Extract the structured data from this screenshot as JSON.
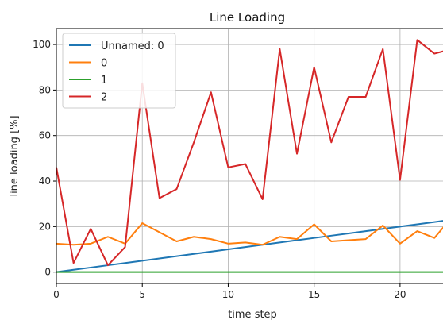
{
  "chart_data": {
    "type": "line",
    "title": "Line Loading",
    "xlabel": "time step",
    "ylabel": "line loading [%]",
    "xlim": [
      0,
      22.5
    ],
    "ylim": [
      -5,
      107
    ],
    "xticks": [
      0,
      5,
      10,
      15,
      20
    ],
    "yticks": [
      0,
      20,
      40,
      60,
      80,
      100
    ],
    "grid": true,
    "legend_position": "top-left",
    "x": [
      0,
      1,
      2,
      3,
      4,
      5,
      6,
      7,
      8,
      9,
      10,
      11,
      12,
      13,
      14,
      15,
      16,
      17,
      18,
      19,
      20,
      21,
      22,
      23
    ],
    "series": [
      {
        "name": "Unnamed: 0",
        "color": "#1f77b4",
        "values": [
          0,
          1,
          2,
          3,
          4,
          5,
          6,
          7,
          8,
          9,
          10,
          11,
          12,
          13,
          14,
          15,
          16,
          17,
          18,
          19,
          20,
          21,
          22,
          23
        ]
      },
      {
        "name": "0",
        "color": "#ff7f0e",
        "values": [
          12.5,
          12,
          12.5,
          15.5,
          12.5,
          21.5,
          17.5,
          13.5,
          15.5,
          14.5,
          12.5,
          13,
          12,
          15.5,
          14.5,
          21,
          13.5,
          14,
          14.5,
          20.5,
          12.5,
          18,
          15,
          24
        ]
      },
      {
        "name": "1",
        "color": "#2ca02c",
        "values": [
          0,
          0,
          0,
          0,
          0,
          0,
          0,
          0,
          0,
          0,
          0,
          0,
          0,
          0,
          0,
          0,
          0,
          0,
          0,
          0,
          0,
          0,
          0,
          0
        ]
      },
      {
        "name": "2",
        "color": "#d62728",
        "values": [
          46,
          4,
          19,
          3,
          11,
          83,
          32.5,
          36.5,
          57,
          79,
          46,
          47.5,
          32,
          98,
          52,
          90,
          57,
          77,
          77,
          98,
          40.5,
          102,
          96,
          98
        ]
      }
    ]
  }
}
